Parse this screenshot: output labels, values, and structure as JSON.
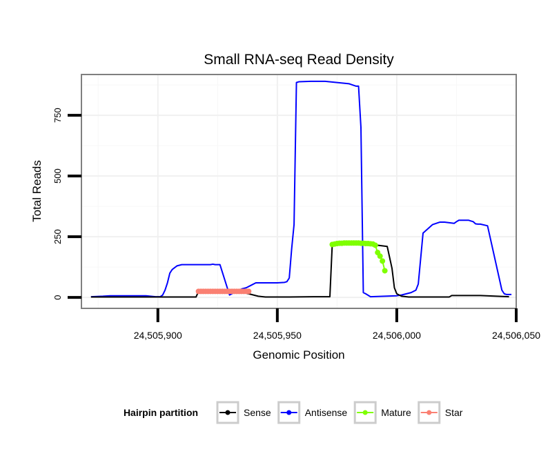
{
  "chart_data": {
    "type": "line",
    "title": "Small RNA-seq Read Density",
    "xlabel": "Genomic Position",
    "ylabel": "Total Reads",
    "xlim": [
      24505868,
      24506050
    ],
    "ylim": [
      -45,
      918
    ],
    "xticks": [
      24505900,
      24505950,
      24506000,
      24506050
    ],
    "xtick_labels": [
      "24,505,900",
      "24,505,950",
      "24,506,000",
      "24,506,050"
    ],
    "yticks": [
      0,
      250,
      500,
      750
    ],
    "ytick_labels": [
      "0",
      "250",
      "500",
      "750"
    ],
    "grid": true,
    "legend": {
      "title": "Hairpin partition",
      "position": "bottom",
      "entries": [
        "Sense",
        "Antisense",
        "Mature",
        "Star"
      ]
    },
    "series": [
      {
        "name": "Antisense",
        "color": "#0000ff",
        "markers": false,
        "x": [
          24505872,
          24505877,
          24505880,
          24505895,
          24505899,
          24505901,
          24505902,
          24505903,
          24505904,
          24505905,
          24505906,
          24505908,
          24505910,
          24505912,
          24505915,
          24505922,
          24505923,
          24505924,
          24505926,
          24505930,
          24505935,
          24505937,
          24505939,
          24505941,
          24505946,
          24505950,
          24505953,
          24505954,
          24505955,
          24505956,
          24505957,
          24505958,
          24505959,
          24505964,
          24505970,
          24505975,
          24505980,
          24505983,
          24505984,
          24505985,
          24505986,
          24505987,
          24505989,
          24505995,
          24506000,
          24506002,
          24506004,
          24506006,
          24506007,
          24506008,
          24506009,
          24506011,
          24506015,
          24506018,
          24506020,
          24506024,
          24506025,
          24506026,
          24506030,
          24506031,
          24506032,
          24506033,
          24506034,
          24506035,
          24506038,
          24506044,
          24506045,
          24506046,
          24506048
        ],
        "y": [
          3,
          5,
          7,
          7,
          3,
          3,
          10,
          30,
          60,
          100,
          115,
          130,
          135,
          135,
          135,
          135,
          137,
          135,
          135,
          10,
          35,
          40,
          50,
          60,
          60,
          60,
          62,
          65,
          80,
          200,
          300,
          885,
          888,
          890,
          890,
          885,
          880,
          870,
          870,
          700,
          20,
          15,
          3,
          5,
          7,
          10,
          15,
          20,
          25,
          30,
          55,
          265,
          300,
          310,
          310,
          305,
          312,
          318,
          318,
          315,
          312,
          303,
          302,
          302,
          295,
          30,
          15,
          12,
          12
        ]
      },
      {
        "name": "Sense",
        "color": "#000000",
        "markers": false,
        "x": [
          24505872,
          24505890,
          24505905,
          24505916,
          24505917,
          24505922,
          24505930,
          24505935,
          24505938,
          24505942,
          24505945,
          24505955,
          24505965,
          24505970,
          24505972,
          24505973,
          24505988,
          24505996,
          24505998,
          24505999,
          24506000,
          24506002,
          24506005,
          24506015,
          24506022,
          24506023,
          24506035,
          24506047
        ],
        "y": [
          2,
          2,
          2,
          2,
          25,
          25,
          25,
          22,
          15,
          5,
          2,
          2,
          3,
          3,
          3,
          220,
          220,
          210,
          120,
          40,
          15,
          5,
          2,
          2,
          2,
          8,
          8,
          3
        ]
      },
      {
        "name": "Mature",
        "color": "#7fff00",
        "markers": true,
        "x": [
          24505973,
          24505974,
          24505975,
          24505976,
          24505977,
          24505978,
          24505979,
          24505980,
          24505981,
          24505982,
          24505983,
          24505984,
          24505985,
          24505986,
          24505987,
          24505988,
          24505989,
          24505990,
          24505991,
          24505992,
          24505993,
          24505994,
          24505995
        ],
        "y": [
          218,
          220,
          222,
          223,
          223,
          224,
          224,
          224,
          224,
          224,
          224,
          224,
          223,
          223,
          222,
          222,
          221,
          220,
          215,
          185,
          170,
          150,
          110
        ]
      },
      {
        "name": "Star",
        "color": "#fa8072",
        "markers": true,
        "x": [
          24505917,
          24505918,
          24505919,
          24505920,
          24505921,
          24505922,
          24505923,
          24505924,
          24505925,
          24505926,
          24505927,
          24505928,
          24505929,
          24505930,
          24505931,
          24505932,
          24505933,
          24505934,
          24505935,
          24505936,
          24505937,
          24505938
        ],
        "y": [
          25,
          25,
          25,
          25,
          25,
          25,
          25,
          25,
          25,
          25,
          25,
          25,
          25,
          25,
          25,
          25,
          25,
          25,
          25,
          25,
          25,
          25
        ]
      }
    ]
  }
}
